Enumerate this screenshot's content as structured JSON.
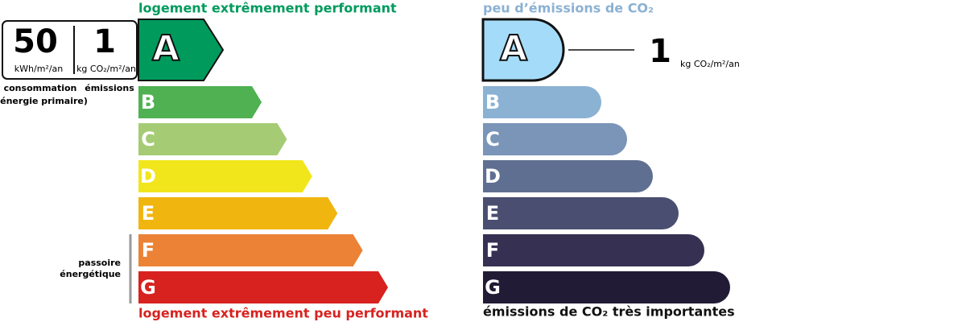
{
  "energy": {
    "header": "logement extrêmement performant",
    "consumption": {
      "value": 50,
      "unit": "kWh/m²/an",
      "label_line1": "consommation",
      "label_line2": "(énergie primaire)"
    },
    "emissions": {
      "value": 1,
      "unit": "kg CO₂/m²/an",
      "label": "émissions"
    },
    "classes": [
      "A",
      "B",
      "C",
      "D",
      "E",
      "F",
      "G"
    ],
    "passoire_line1": "passoire",
    "passoire_line2": "énergétique",
    "footer": "logement extrêmement peu performant"
  },
  "climate": {
    "header": "peu d’émissions de CO₂",
    "value": 1,
    "unit": "kg CO₂/m²/an",
    "classes": [
      "A",
      "B",
      "C",
      "D",
      "E",
      "F",
      "G"
    ],
    "footer": "émissions de CO₂ très importantes"
  }
}
